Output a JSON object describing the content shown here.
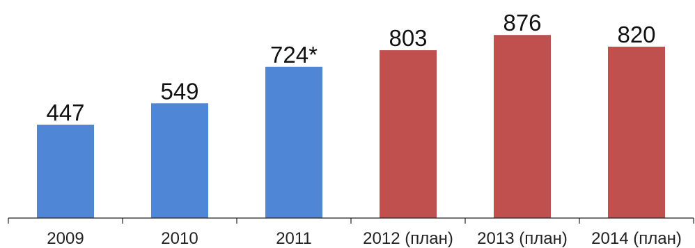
{
  "chart_data": {
    "type": "bar",
    "title": "",
    "xlabel": "",
    "ylabel": "",
    "ylim": [
      0,
      980
    ],
    "grid": false,
    "legend": "none",
    "categories": [
      "2009",
      "2010",
      "2011",
      "2012 (план)",
      "2013 (план)",
      "2014 (план)"
    ],
    "values": [
      447,
      549,
      724,
      803,
      876,
      820
    ],
    "data_labels": [
      "447",
      "549",
      "724*",
      "803",
      "876",
      "820"
    ],
    "bar_colors": [
      "#4f86d6",
      "#4f86d6",
      "#4f86d6",
      "#c0504d",
      "#c0504d",
      "#c0504d"
    ]
  }
}
